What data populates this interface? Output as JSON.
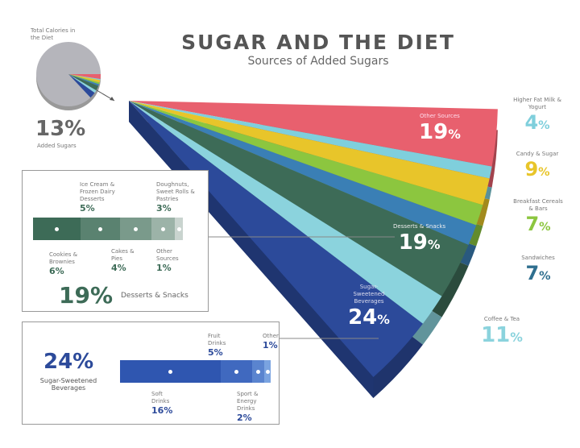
{
  "header": {
    "title": "SUGAR AND THE DIET",
    "subtitle": "Sources of Added Sugars"
  },
  "inset": {
    "label": "Total Calories in the Diet",
    "value": "13%",
    "caption": "Added Sugars",
    "base_color": "#b5b5bb"
  },
  "chart_data": {
    "type": "pie",
    "title": "SUGAR AND THE DIET",
    "subtitle": "Sources of Added Sugars",
    "slices": [
      {
        "name": "Other Sources",
        "value": 19,
        "color": "#e8606e"
      },
      {
        "name": "Higher Fat Milk & Yogurt",
        "value": 4,
        "color": "#7fcfdc"
      },
      {
        "name": "Candy & Sugar",
        "value": 9,
        "color": "#e8c52a"
      },
      {
        "name": "Breakfast Cereals & Bars",
        "value": 7,
        "color": "#8cc63f"
      },
      {
        "name": "Sandwiches",
        "value": 7,
        "color": "#3a7fb5"
      },
      {
        "name": "Desserts & Snacks",
        "value": 19,
        "color": "#3d6b57"
      },
      {
        "name": "Coffee & Tea",
        "value": 11,
        "color": "#8bd3dd"
      },
      {
        "name": "Sugar-Sweetened Beverages",
        "value": 24,
        "color": "#2c4a9a"
      }
    ],
    "breakdowns": [
      {
        "name": "Desserts & Snacks",
        "total": "19%",
        "items": [
          {
            "name": "Cookies & Brownies",
            "value": 6,
            "color": "#3d6b57"
          },
          {
            "name": "Ice Cream & Frozen Dairy Desserts",
            "value": 5,
            "color": "#5a8270"
          },
          {
            "name": "Cakes & Pies",
            "value": 4,
            "color": "#7a9a8b"
          },
          {
            "name": "Doughnuts, Sweet Rolls & Pastries",
            "value": 3,
            "color": "#9cb3a8"
          },
          {
            "name": "Other Sources",
            "value": 1,
            "color": "#c9d4cf"
          }
        ]
      },
      {
        "name": "Sugar-Sweetened Beverages",
        "total": "24%",
        "items": [
          {
            "name": "Soft Drinks",
            "value": 16,
            "color": "#2f56b0"
          },
          {
            "name": "Fruit Drinks",
            "value": 5,
            "color": "#4069bf"
          },
          {
            "name": "Sport & Energy Drinks",
            "value": 2,
            "color": "#5a84cf"
          },
          {
            "name": "Other",
            "value": 1,
            "color": "#7aa3e0"
          }
        ]
      }
    ]
  }
}
